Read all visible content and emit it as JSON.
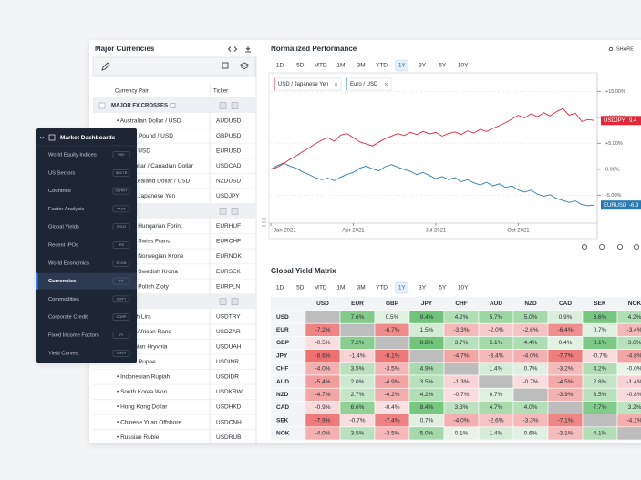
{
  "left_panel": {
    "title": "Major Currencies",
    "columns": [
      "Currency Pair",
      "Ticker"
    ],
    "rows": [
      {
        "group": "MAJOR FX CROSSES"
      },
      {
        "name": "• Australian Dollar / USD",
        "ticker": "AUDUSD"
      },
      {
        "name": "• British Pound / USD",
        "ticker": "GBPUSD"
      },
      {
        "name": "• Euro / USD",
        "ticker": "EURUSD"
      },
      {
        "name": "• US Dollar / Canadian Dollar",
        "ticker": "USDCAD"
      },
      {
        "name": "• New Zealand Dollar / USD",
        "ticker": "NZDUSD"
      },
      {
        "name": "• USD / Japanese Yen",
        "ticker": "USDJPY"
      },
      {
        "group": null
      },
      {
        "name": "• Euro / Hungarian Forint",
        "ticker": "EURHUF"
      },
      {
        "name": "• Euro / Swiss Franc",
        "ticker": "EURCHF"
      },
      {
        "name": "• Euro / Norwegian Krone",
        "ticker": "EURNOK"
      },
      {
        "name": "• Euro / Swedish Krona",
        "ticker": "EURSEK"
      },
      {
        "name": "• Euro / Polish Zloty",
        "ticker": "EURPLN"
      },
      {
        "group": null
      },
      {
        "name": "• Turkish Lira",
        "ticker": "USDTRY"
      },
      {
        "name": "• South African Rand",
        "ticker": "USDZAR"
      },
      {
        "name": "• Ukrainian Hryvnia",
        "ticker": "USDUAH"
      },
      {
        "name": "• Indian Rupee",
        "ticker": "USDINR"
      },
      {
        "name": "• Indonesian Rupiah",
        "ticker": "USDIDR"
      },
      {
        "name": "• South Korea Won",
        "ticker": "USDKRW"
      },
      {
        "name": "• Hong Kong Dollar",
        "ticker": "USDHKD"
      },
      {
        "name": "• Chinese Yuan Offshore",
        "ticker": "USDCNH"
      },
      {
        "name": "• Russian Ruble",
        "ticker": "USDRUB"
      }
    ]
  },
  "menu": {
    "title": "Market Dashboards",
    "active_index": 7,
    "items": [
      {
        "label": "World Equity Indices",
        "code": "WEI"
      },
      {
        "label": "US Sectors",
        "code": "SECTR"
      },
      {
        "label": "Countries",
        "code": "CNTRY"
      },
      {
        "label": "Factor Analysis",
        "code": "FACT"
      },
      {
        "label": "Global Yields",
        "code": "GYLD"
      },
      {
        "label": "Recent IPOs",
        "code": "IPO"
      },
      {
        "label": "World Economics",
        "code": "ECON"
      },
      {
        "label": "Currencies",
        "code": "FX"
      },
      {
        "label": "Commodities",
        "code": "CMTY"
      },
      {
        "label": "Corporate Credit",
        "code": "CORP"
      },
      {
        "label": "Fixed Income Factors",
        "code": "FI"
      },
      {
        "label": "Yield Curves",
        "code": "CRVY"
      }
    ]
  },
  "performance": {
    "title": "Normalized Performance",
    "share": "SHARE",
    "ranges": [
      "1D",
      "5D",
      "MTD",
      "1M",
      "3M",
      "YTD",
      "1Y",
      "3Y",
      "5Y",
      "10Y"
    ],
    "selected_range_index": 6
  },
  "chart_data": {
    "type": "line",
    "x": [
      0,
      1,
      2,
      3,
      4,
      5,
      6,
      7,
      8,
      9,
      10,
      11,
      12,
      13,
      14,
      15,
      16,
      17,
      18,
      19,
      20,
      21,
      22,
      23,
      24,
      25,
      26,
      27,
      28,
      29,
      30,
      31,
      32,
      33,
      34,
      35,
      36,
      37,
      38,
      39,
      40,
      41,
      42,
      43,
      44,
      45,
      46,
      47,
      48,
      49,
      50,
      51
    ],
    "xlim": [
      0,
      51
    ],
    "xticks": [
      {
        "value": 0,
        "label": "Jan 2021"
      },
      {
        "value": 13,
        "label": "Apr 2021"
      },
      {
        "value": 26,
        "label": "Jul 2021"
      },
      {
        "value": 39,
        "label": "Oct 2021"
      }
    ],
    "ylim": [
      -9.5,
      17
    ],
    "yticks": [
      {
        "value": 15,
        "label": "+15.00%"
      },
      {
        "value": 10,
        "label": "+10.00%"
      },
      {
        "value": 5,
        "label": "+5.00%"
      },
      {
        "value": 0,
        "label": "0.00%"
      },
      {
        "value": -5,
        "label": "-5.00%"
      }
    ],
    "series": [
      {
        "name": "USD / Japanese Yen",
        "tag": "USDJPY",
        "color": "#e0283a",
        "values": [
          0,
          0.4,
          1.1,
          1.9,
          2.6,
          3.4,
          4.1,
          4.9,
          5.6,
          6.1,
          5.4,
          6.6,
          6.9,
          6.1,
          5.3,
          4.9,
          4.5,
          5.2,
          5.9,
          6.4,
          6.9,
          6.5,
          7.1,
          6.7,
          7.3,
          6.8,
          7.1,
          6.4,
          6.9,
          7.2,
          6.7,
          7.4,
          7.0,
          7.7,
          7.3,
          7.9,
          8.4,
          9.0,
          9.7,
          10.4,
          9.9,
          10.7,
          10.1,
          10.9,
          10.3,
          11.1,
          11.7,
          10.4,
          10.8,
          9.2,
          9.6,
          9.4
        ]
      },
      {
        "name": "Euro / USD",
        "tag": "EURUSD",
        "color": "#2a7ab0",
        "values": [
          0,
          0.7,
          1.2,
          0.6,
          0.2,
          -0.5,
          -1.0,
          -1.6,
          -2.0,
          -1.7,
          -2.2,
          -1.5,
          -1.0,
          -0.6,
          0.2,
          0.6,
          0.1,
          -0.3,
          0.5,
          0.9,
          0.4,
          0.0,
          -0.4,
          -1.0,
          -0.6,
          -1.2,
          -1.8,
          -1.4,
          -2.0,
          -1.6,
          -2.4,
          -2.0,
          -2.6,
          -3.0,
          -2.5,
          -3.2,
          -2.8,
          -3.5,
          -3.2,
          -4.0,
          -4.4,
          -4.0,
          -4.8,
          -5.2,
          -4.9,
          -5.6,
          -6.0,
          -6.4,
          -6.1,
          -6.8,
          -7.0,
          -6.9
        ]
      }
    ]
  },
  "yield_matrix": {
    "title": "Global Yield Matrix",
    "ranges": [
      "1D",
      "5D",
      "MTD",
      "1M",
      "3M",
      "YTD",
      "1Y",
      "3Y",
      "5Y",
      "10Y"
    ],
    "selected_range_index": 6,
    "columns": [
      "USD",
      "EUR",
      "GBP",
      "JPY",
      "CHF",
      "AUD",
      "NZD",
      "CAD",
      "SEK",
      "NOK"
    ],
    "rows": [
      {
        "label": "USD",
        "cells": [
          null,
          "7.6%",
          "0.5%",
          "9.4%",
          "4.2%",
          "5.7%",
          "5.0%",
          "0.9%",
          "8.6%",
          "4.2%"
        ]
      },
      {
        "label": "EUR",
        "cells": [
          "-7.2%",
          null,
          "-6.7%",
          "1.5%",
          "-3.3%",
          "-2.0%",
          "-2.6%",
          "-6.4%",
          "0.7%",
          "-3.4%"
        ]
      },
      {
        "label": "GBP",
        "cells": [
          "-0.5%",
          "7.2%",
          null,
          "8.8%",
          "3.7%",
          "5.1%",
          "4.4%",
          "0.4%",
          "8.1%",
          "3.6%"
        ]
      },
      {
        "label": "JPY",
        "cells": [
          "-8.6%",
          "-1.4%",
          "-8.1%",
          null,
          "-4.7%",
          "-3.4%",
          "-4.0%",
          "-7.7%",
          "-0.7%",
          "-4.8%"
        ]
      },
      {
        "label": "CHF",
        "cells": [
          "-4.0%",
          "3.5%",
          "-3.5%",
          "4.9%",
          null,
          "1.4%",
          "0.7%",
          "-3.2%",
          "4.2%",
          "-0.0%"
        ]
      },
      {
        "label": "AUD",
        "cells": [
          "-5.4%",
          "2.0%",
          "-4.9%",
          "3.5%",
          "-1.3%",
          null,
          "-0.7%",
          "-4.5%",
          "2.8%",
          "-1.4%"
        ]
      },
      {
        "label": "NZD",
        "cells": [
          "-4.7%",
          "2.7%",
          "-4.2%",
          "4.2%",
          "-0.7%",
          "0.7%",
          null,
          "-3.9%",
          "3.5%",
          "-0.8%"
        ]
      },
      {
        "label": "CAD",
        "cells": [
          "-0.9%",
          "6.6%",
          "-0.4%",
          "8.4%",
          "3.3%",
          "4.7%",
          "4.0%",
          null,
          "7.7%",
          "3.2%"
        ]
      },
      {
        "label": "SEK",
        "cells": [
          "-7.9%",
          "-0.7%",
          "-7.4%",
          "0.7%",
          "-4.0%",
          "-2.6%",
          "-3.3%",
          "-7.1%",
          null,
          "-4.1%"
        ]
      },
      {
        "label": "NOK",
        "cells": [
          "-4.0%",
          "3.5%",
          "-3.5%",
          "5.0%",
          "0.1%",
          "1.4%",
          "0.6%",
          "-3.1%",
          "4.1%",
          null
        ]
      }
    ]
  }
}
